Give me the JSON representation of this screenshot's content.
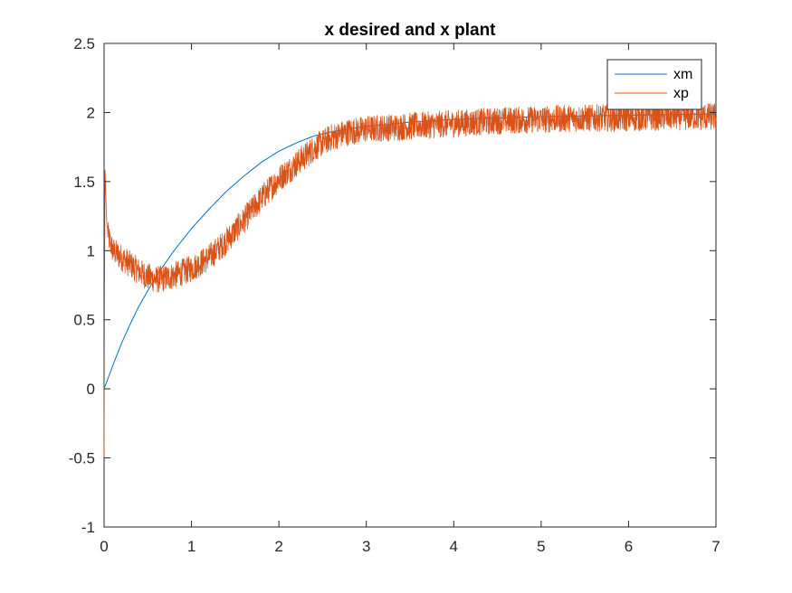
{
  "chart_data": {
    "type": "line",
    "title": "x desired and x plant",
    "xlabel": "",
    "ylabel": "",
    "xlim": [
      0,
      7
    ],
    "ylim": [
      -1,
      2.5
    ],
    "xticks": [
      "0",
      "1",
      "2",
      "3",
      "4",
      "5",
      "6",
      "7"
    ],
    "yticks": [
      "-1",
      "-0.5",
      "0",
      "0.5",
      "1",
      "1.5",
      "2",
      "2.5"
    ],
    "grid": false,
    "legend_position": "top-right",
    "series": [
      {
        "name": "xm",
        "color": "#0072BD",
        "x": [
          0,
          0.1,
          0.2,
          0.3,
          0.4,
          0.5,
          0.6,
          0.8,
          1.0,
          1.2,
          1.4,
          1.6,
          1.8,
          2.0,
          2.2,
          2.4,
          2.6,
          3.0,
          3.5,
          4.0,
          5.0,
          6.0,
          7.0
        ],
        "values": [
          0,
          0.17,
          0.33,
          0.47,
          0.6,
          0.71,
          0.82,
          1.0,
          1.16,
          1.3,
          1.43,
          1.54,
          1.64,
          1.72,
          1.78,
          1.83,
          1.86,
          1.9,
          1.93,
          1.95,
          1.97,
          1.98,
          1.99
        ]
      },
      {
        "name": "xp",
        "color": "#D95319",
        "x": [
          0,
          0.01,
          0.03,
          0.05,
          0.1,
          0.2,
          0.3,
          0.4,
          0.5,
          0.6,
          0.7,
          0.8,
          1.0,
          1.2,
          1.4,
          1.6,
          1.8,
          2.0,
          2.2,
          2.4,
          2.6,
          2.8,
          3.0,
          3.5,
          4.0,
          4.5,
          5.0,
          5.5,
          6.0,
          6.5,
          7.0
        ],
        "values": [
          -0.5,
          1.6,
          1.2,
          1.1,
          1.0,
          0.95,
          0.9,
          0.85,
          0.81,
          0.79,
          0.8,
          0.82,
          0.87,
          0.95,
          1.07,
          1.22,
          1.38,
          1.52,
          1.63,
          1.74,
          1.82,
          1.86,
          1.88,
          1.9,
          1.92,
          1.94,
          1.95,
          1.96,
          1.96,
          1.97,
          1.97
        ],
        "noise_amplitude": 0.1
      }
    ]
  }
}
